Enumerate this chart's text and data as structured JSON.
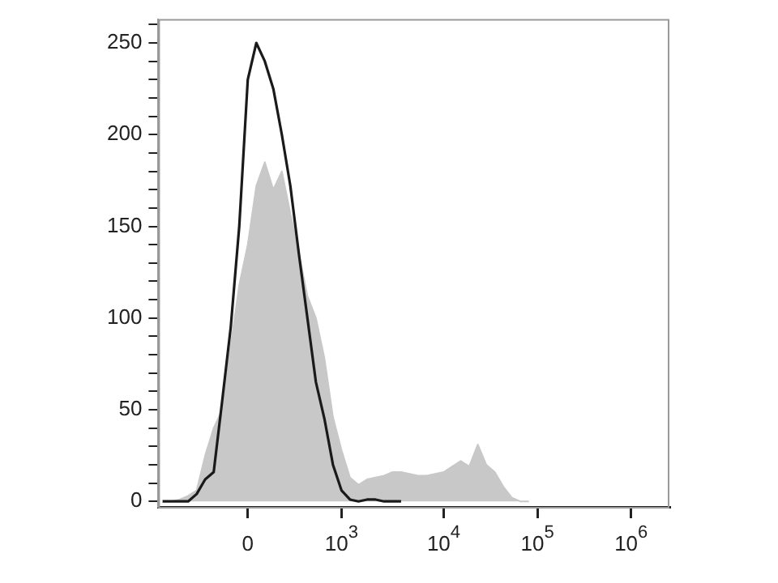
{
  "chart_data": {
    "type": "area",
    "categories": [
      null,
      null,
      null,
      null,
      null,
      null,
      null,
      null,
      null,
      null,
      "0",
      null,
      null,
      null,
      null,
      null,
      null,
      null,
      null,
      null,
      null,
      "10$^{3}$",
      null,
      null,
      null,
      null,
      null,
      null,
      null,
      null,
      null,
      null,
      null,
      "10$^{4}$",
      null,
      null,
      null,
      null,
      null,
      null,
      null,
      null,
      null,
      null,
      "10$^{5}$",
      null,
      null,
      null,
      null,
      null,
      null,
      null,
      null,
      null,
      null,
      "10$^{6}$",
      null,
      null,
      null,
      null
    ],
    "series": [
      {
        "color": "#c8c8c8",
        "values": [
          0,
          0,
          1,
          3,
          6,
          25,
          40,
          50,
          85,
          118,
          140,
          172,
          185,
          170,
          180,
          157,
          135,
          112,
          100,
          78,
          46,
          28,
          13,
          9,
          12,
          13,
          14,
          16,
          16,
          15,
          14,
          14,
          15,
          16,
          19,
          22,
          19,
          31,
          20,
          16,
          8,
          2,
          0,
          0,
          null,
          null,
          null,
          null,
          null,
          null,
          null,
          null,
          null,
          null,
          null,
          null,
          null,
          null,
          null,
          null
        ]
      },
      {
        "type": "line",
        "color": "#1a1a1a",
        "values": [
          0,
          0,
          0,
          0,
          4,
          12,
          16,
          55,
          95,
          150,
          230,
          250,
          240,
          225,
          200,
          172,
          135,
          100,
          65,
          45,
          20,
          6,
          1,
          0,
          1,
          1,
          0,
          0,
          0,
          null,
          null,
          null,
          null,
          null,
          null,
          null,
          null,
          null,
          null,
          null,
          null,
          null,
          null,
          null,
          null,
          null,
          null,
          null,
          null,
          null,
          null,
          null,
          null,
          null,
          null,
          null,
          null,
          null,
          null,
          null
        ]
      }
    ],
    "ylim": [
      -3,
      263
    ],
    "yticks": [
      0,
      {
        "value": 10,
        "label": null
      },
      {
        "value": 20,
        "label": null
      },
      {
        "value": 30,
        "label": null
      },
      {
        "value": 40,
        "label": null
      },
      50,
      {
        "value": 60,
        "label": null
      },
      {
        "value": 70,
        "label": null
      },
      {
        "value": 80,
        "label": null
      },
      {
        "value": 90,
        "label": null
      },
      100,
      {
        "value": 110,
        "label": null
      },
      {
        "value": 120,
        "label": null
      },
      {
        "value": 130,
        "label": null
      },
      {
        "value": 140,
        "label": null
      },
      150,
      {
        "value": 160,
        "label": null
      },
      {
        "value": 170,
        "label": null
      },
      {
        "value": 180,
        "label": null
      },
      {
        "value": 190,
        "label": null
      },
      200,
      {
        "value": 210,
        "label": null
      },
      {
        "value": 220,
        "label": null
      },
      {
        "value": 230,
        "label": null
      },
      {
        "value": 240,
        "label": null
      },
      250,
      {
        "value": 260,
        "label": null
      }
    ],
    "grid": false,
    "legend": false,
    "marker": "none",
    "line_style": "solid"
  }
}
